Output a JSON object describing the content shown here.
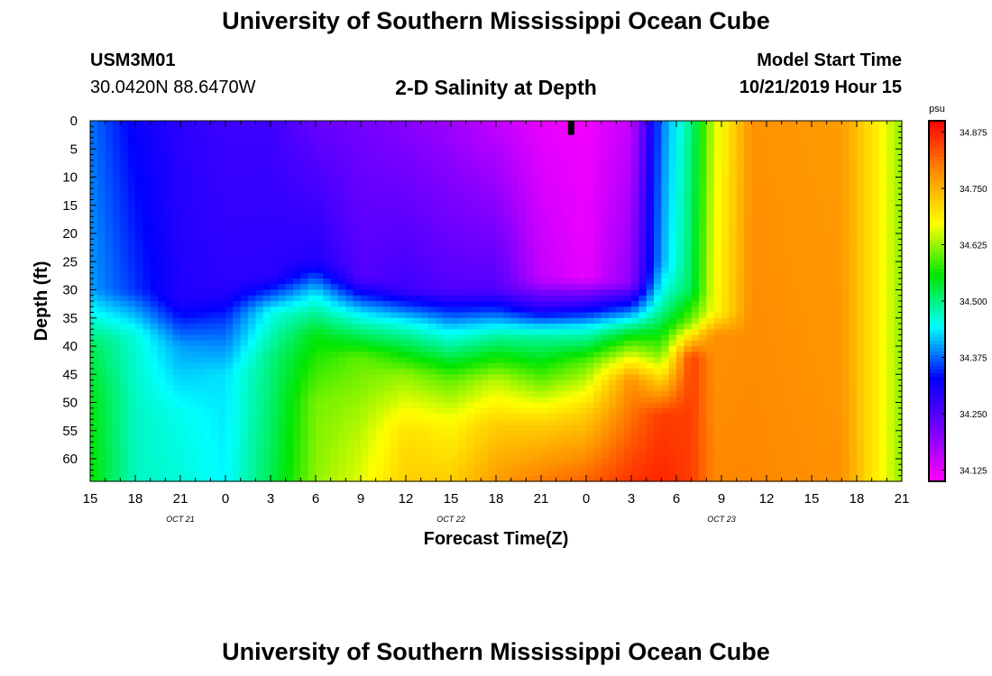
{
  "header": {
    "title": "University of Southern Mississippi Ocean Cube",
    "station_id": "USM3M01",
    "location": "30.0420N 88.6470W",
    "plot_title": "2-D Salinity at Depth",
    "start_label": "Model Start Time",
    "start_value": "10/21/2019 Hour 15"
  },
  "footer": {
    "title": "University of Southern Mississippi Ocean Cube"
  },
  "chart_data": {
    "type": "heatmap",
    "title": "2-D Salinity at Depth",
    "xlabel": "Forecast Time(Z)",
    "ylabel": "Depth (ft)",
    "x_tick_labels": [
      "15",
      "18",
      "21",
      "0",
      "3",
      "6",
      "9",
      "12",
      "15",
      "18",
      "21",
      "0",
      "3",
      "6",
      "9",
      "12",
      "15",
      "18",
      "21"
    ],
    "date_labels": [
      {
        "label": "OCT 21",
        "tick_index": 2
      },
      {
        "label": "OCT 22",
        "tick_index": 8
      },
      {
        "label": "OCT 23",
        "tick_index": 14
      }
    ],
    "x_range_hours": [
      0,
      54
    ],
    "y_tick_labels": [
      "0",
      "5",
      "10",
      "15",
      "20",
      "25",
      "30",
      "35",
      "40",
      "45",
      "50",
      "55",
      "60"
    ],
    "y_range_ft": [
      0,
      64
    ],
    "colorbar": {
      "unit": "psu",
      "range": [
        34.1,
        34.9
      ],
      "tick_labels": [
        "34.125",
        "34.250",
        "34.375",
        "34.500",
        "34.625",
        "34.750",
        "34.875"
      ],
      "tick_values": [
        34.125,
        34.25,
        34.375,
        34.5,
        34.625,
        34.75,
        34.875
      ]
    },
    "marker": {
      "name": "current-time",
      "hour": 32,
      "depth_ft": 2.5
    },
    "salinity_profiles": [
      {
        "hour": 0,
        "depths": [
          0,
          30,
          40,
          50,
          64
        ],
        "values": [
          34.38,
          34.4,
          34.52,
          34.55,
          34.56
        ]
      },
      {
        "hour": 3,
        "depths": [
          0,
          30,
          38,
          50,
          64
        ],
        "values": [
          34.32,
          34.35,
          34.46,
          34.47,
          34.47
        ]
      },
      {
        "hour": 6,
        "depths": [
          0,
          32,
          40,
          52,
          64
        ],
        "values": [
          34.29,
          34.3,
          34.4,
          34.45,
          34.46
        ]
      },
      {
        "hour": 9,
        "depths": [
          0,
          30,
          36,
          45,
          64
        ],
        "values": [
          34.27,
          34.29,
          34.36,
          34.43,
          34.44
        ]
      },
      {
        "hour": 12,
        "depths": [
          0,
          28,
          34,
          42,
          64
        ],
        "values": [
          34.27,
          34.29,
          34.45,
          34.5,
          34.52
        ]
      },
      {
        "hour": 15,
        "depths": [
          0,
          25,
          31,
          38,
          50,
          64
        ],
        "values": [
          34.23,
          34.3,
          34.44,
          34.55,
          34.61,
          34.62
        ]
      },
      {
        "hour": 18,
        "depths": [
          0,
          28,
          34,
          42,
          55,
          64
        ],
        "values": [
          34.22,
          34.25,
          34.43,
          34.6,
          34.64,
          34.66
        ]
      },
      {
        "hour": 21,
        "depths": [
          0,
          30,
          36,
          45,
          55,
          64
        ],
        "values": [
          34.2,
          34.27,
          34.45,
          34.62,
          34.7,
          34.72
        ]
      },
      {
        "hour": 24,
        "depths": [
          0,
          30,
          37,
          46,
          54,
          64
        ],
        "values": [
          34.18,
          34.25,
          34.43,
          34.6,
          34.68,
          34.72
        ]
      },
      {
        "hour": 27,
        "depths": [
          0,
          30,
          38,
          46,
          54,
          64
        ],
        "values": [
          34.15,
          34.25,
          34.48,
          34.64,
          34.72,
          34.77
        ]
      },
      {
        "hour": 30,
        "depths": [
          0,
          28,
          33,
          38,
          46,
          54,
          64
        ],
        "values": [
          34.12,
          34.15,
          34.28,
          34.48,
          34.6,
          34.72,
          34.8
        ]
      },
      {
        "hour": 33,
        "depths": [
          0,
          28,
          33,
          37,
          43,
          52,
          64
        ],
        "values": [
          34.11,
          34.12,
          34.3,
          34.45,
          34.6,
          34.72,
          34.82
        ]
      },
      {
        "hour": 36,
        "depths": [
          0,
          29,
          33,
          38,
          46,
          64
        ],
        "values": [
          34.15,
          34.2,
          34.35,
          34.55,
          34.78,
          34.86
        ]
      },
      {
        "hour": 38,
        "depths": [
          0,
          25,
          33,
          42,
          52,
          64
        ],
        "values": [
          34.38,
          34.4,
          34.48,
          34.62,
          34.85,
          34.87
        ]
      },
      {
        "hour": 40,
        "depths": [
          0,
          30,
          36,
          42,
          64
        ],
        "values": [
          34.5,
          34.52,
          34.62,
          34.85,
          34.85
        ]
      },
      {
        "hour": 41.5,
        "depths": [
          0,
          34,
          38,
          64
        ],
        "values": [
          34.65,
          34.67,
          34.78,
          34.79
        ]
      },
      {
        "hour": 44,
        "depths": [
          0,
          64
        ],
        "values": [
          34.78,
          34.79
        ]
      },
      {
        "hour": 50,
        "depths": [
          0,
          64
        ],
        "values": [
          34.77,
          34.78
        ]
      },
      {
        "hour": 52,
        "depths": [
          0,
          64
        ],
        "values": [
          34.7,
          34.7
        ]
      },
      {
        "hour": 54,
        "depths": [
          0,
          64
        ],
        "values": [
          34.62,
          34.62
        ]
      }
    ]
  }
}
